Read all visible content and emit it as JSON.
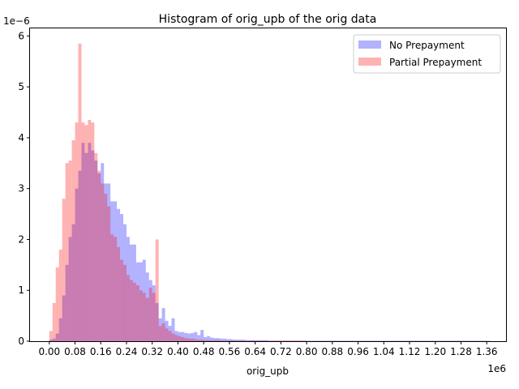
{
  "chart_data": {
    "type": "histogram",
    "title": "Histogram of orig_upb of the orig data",
    "xlabel": "orig_upb",
    "ylabel": "",
    "x_offset_label": "1e6",
    "y_offset_label": "1e−6",
    "xlim": [
      -60000,
      1420000
    ],
    "ylim": [
      0,
      6.15
    ],
    "y_scale": 1e-06,
    "x_scale": 1000000,
    "grid": false,
    "legend_position": "top-right",
    "x_ticks": [
      {
        "value": 0,
        "label": "0.00"
      },
      {
        "value": 80000,
        "label": "0.08"
      },
      {
        "value": 160000,
        "label": "0.16"
      },
      {
        "value": 240000,
        "label": "0.24"
      },
      {
        "value": 320000,
        "label": "0.32"
      },
      {
        "value": 400000,
        "label": "0.40"
      },
      {
        "value": 480000,
        "label": "0.48"
      },
      {
        "value": 560000,
        "label": "0.56"
      },
      {
        "value": 640000,
        "label": "0.64"
      },
      {
        "value": 720000,
        "label": "0.72"
      },
      {
        "value": 800000,
        "label": "0.80"
      },
      {
        "value": 880000,
        "label": "0.88"
      },
      {
        "value": 960000,
        "label": "0.96"
      },
      {
        "value": 1040000,
        "label": "1.04"
      },
      {
        "value": 1120000,
        "label": "1.12"
      },
      {
        "value": 1200000,
        "label": "1.20"
      },
      {
        "value": 1280000,
        "label": "1.28"
      },
      {
        "value": 1360000,
        "label": "1.36"
      }
    ],
    "y_ticks": [
      {
        "value": 0,
        "label": "0"
      },
      {
        "value": 1,
        "label": "1"
      },
      {
        "value": 2,
        "label": "2"
      },
      {
        "value": 3,
        "label": "3"
      },
      {
        "value": 4,
        "label": "4"
      },
      {
        "value": 5,
        "label": "5"
      },
      {
        "value": 6,
        "label": "6"
      }
    ],
    "series": [
      {
        "name": "No Prepayment",
        "color": "#0000ff",
        "alpha": 0.3,
        "bin_start": 0,
        "bin_width": 10000,
        "values": [
          0.03,
          0.05,
          0.15,
          0.45,
          0.9,
          1.5,
          2.05,
          2.3,
          3.0,
          3.35,
          3.9,
          3.7,
          3.9,
          3.75,
          3.55,
          3.3,
          3.5,
          3.1,
          3.1,
          2.75,
          2.75,
          2.6,
          2.5,
          2.3,
          2.05,
          1.9,
          1.9,
          1.55,
          1.55,
          1.6,
          1.35,
          1.2,
          1.1,
          0.75,
          0.45,
          0.65,
          0.4,
          0.3,
          0.45,
          0.2,
          0.18,
          0.18,
          0.16,
          0.15,
          0.16,
          0.18,
          0.12,
          0.22,
          0.08,
          0.1,
          0.07,
          0.06,
          0.06,
          0.05,
          0.05,
          0.04,
          0.04,
          0.03,
          0.03,
          0.03,
          0.03,
          0.02,
          0.02,
          0.02,
          0.02,
          0.02,
          0.02,
          0.02,
          0.01,
          0.01,
          0.01,
          0.01,
          0.01,
          0.01,
          0.01,
          0.01,
          0.01,
          0.01,
          0.01,
          0.01,
          0.01,
          0.01,
          0.01,
          0.01,
          0.01,
          0.01,
          0.01,
          0.01,
          0.01,
          0.01,
          0.01,
          0.01,
          0.01,
          0.01,
          0.01,
          0.01,
          0.01,
          0.01,
          0.01,
          0.01,
          0.01,
          0.01,
          0.01,
          0.01,
          0.01,
          0.01,
          0.01,
          0.01,
          0.01,
          0.01,
          0.01,
          0.01,
          0.01,
          0.01,
          0.01,
          0.01,
          0.01,
          0.01,
          0.01,
          0.01,
          0.01,
          0.01,
          0.01,
          0.01,
          0.01,
          0.01,
          0.01,
          0.01,
          0.01,
          0.01,
          0.01,
          0.01,
          0.01,
          0.01,
          0.01,
          0.01,
          0.01
        ]
      },
      {
        "name": "Partial Prepayment",
        "color": "#ff0000",
        "alpha": 0.3,
        "bin_start": 0,
        "bin_width": 10000,
        "values": [
          0.2,
          0.75,
          1.45,
          1.8,
          2.8,
          3.5,
          3.55,
          3.95,
          4.3,
          5.85,
          4.3,
          4.25,
          4.35,
          4.3,
          3.7,
          3.35,
          3.1,
          2.9,
          2.65,
          2.1,
          2.05,
          1.85,
          1.6,
          1.5,
          1.3,
          1.2,
          1.15,
          1.1,
          1.0,
          0.95,
          0.85,
          1.05,
          0.95,
          2.0,
          0.3,
          0.35,
          0.25,
          0.2,
          0.15,
          0.12,
          0.1,
          0.08,
          0.06,
          0.05,
          0.05,
          0.04,
          0.03,
          0.03,
          0.02,
          0.02,
          0.02,
          0.02,
          0.02,
          0.01,
          0.01,
          0.01,
          0.01,
          0.01,
          0.01,
          0.01,
          0.01,
          0.01,
          0.01,
          0.01,
          0.01,
          0.01,
          0.01,
          0.01,
          0.01,
          0.01,
          0.01,
          0.01,
          0.01,
          0.01,
          0.01,
          0.01,
          0.01,
          0.01,
          0.01,
          0.01
        ]
      }
    ]
  }
}
